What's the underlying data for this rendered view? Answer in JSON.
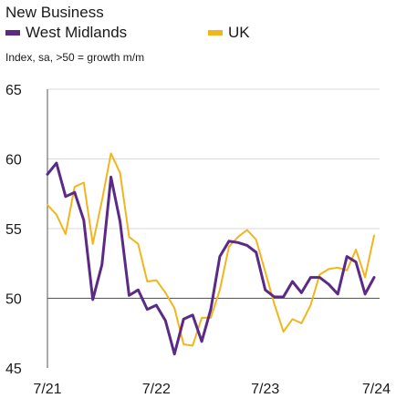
{
  "chart_data": {
    "type": "line",
    "title": "New Business",
    "subtitle": "Index, sa, >50 = growth m/m",
    "xlabel": "",
    "ylabel": "",
    "ylim": [
      45,
      65
    ],
    "yticks": [
      45,
      50,
      55,
      60,
      65
    ],
    "reference_line": 50,
    "x_tick_labels": [
      "7/21",
      "7/22",
      "7/23",
      "7/24"
    ],
    "x": [
      "7/21",
      "8/21",
      "9/21",
      "10/21",
      "11/21",
      "12/21",
      "1/22",
      "2/22",
      "3/22",
      "4/22",
      "5/22",
      "6/22",
      "7/22",
      "8/22",
      "9/22",
      "10/22",
      "11/22",
      "12/22",
      "1/23",
      "2/23",
      "3/23",
      "4/23",
      "5/23",
      "6/23",
      "7/23",
      "8/23",
      "9/23",
      "10/23",
      "11/23",
      "12/23",
      "1/24",
      "2/24",
      "3/24",
      "4/24",
      "5/24",
      "6/24",
      "7/24"
    ],
    "series": [
      {
        "name": "West Midlands",
        "color": "#5b2a86",
        "values": [
          58.9,
          59.7,
          57.3,
          57.6,
          55.6,
          49.9,
          52.4,
          58.7,
          55.5,
          50.2,
          50.6,
          49.2,
          49.5,
          48.4,
          46.0,
          48.5,
          48.8,
          46.9,
          49.2,
          53.0,
          54.1,
          54.0,
          53.8,
          53.3,
          50.6,
          50.1,
          50.1,
          51.2,
          50.4,
          51.5,
          51.5,
          51.0,
          50.3,
          53.0,
          52.6,
          50.3,
          51.5
        ],
        "line_width": 3
      },
      {
        "name": "UK",
        "color": "#f2b51c",
        "values": [
          56.7,
          56.0,
          54.6,
          58.0,
          58.3,
          53.9,
          57.0,
          60.4,
          59.0,
          54.4,
          53.9,
          51.2,
          51.3,
          50.4,
          49.3,
          46.7,
          46.6,
          48.6,
          48.6,
          50.6,
          53.7,
          54.4,
          54.9,
          54.2,
          51.9,
          49.6,
          47.6,
          48.5,
          48.2,
          49.5,
          51.7,
          52.1,
          52.2,
          52.0,
          53.5,
          51.5,
          54.5
        ],
        "line_width": 2
      }
    ],
    "grid": true,
    "legend_placement": "top"
  }
}
